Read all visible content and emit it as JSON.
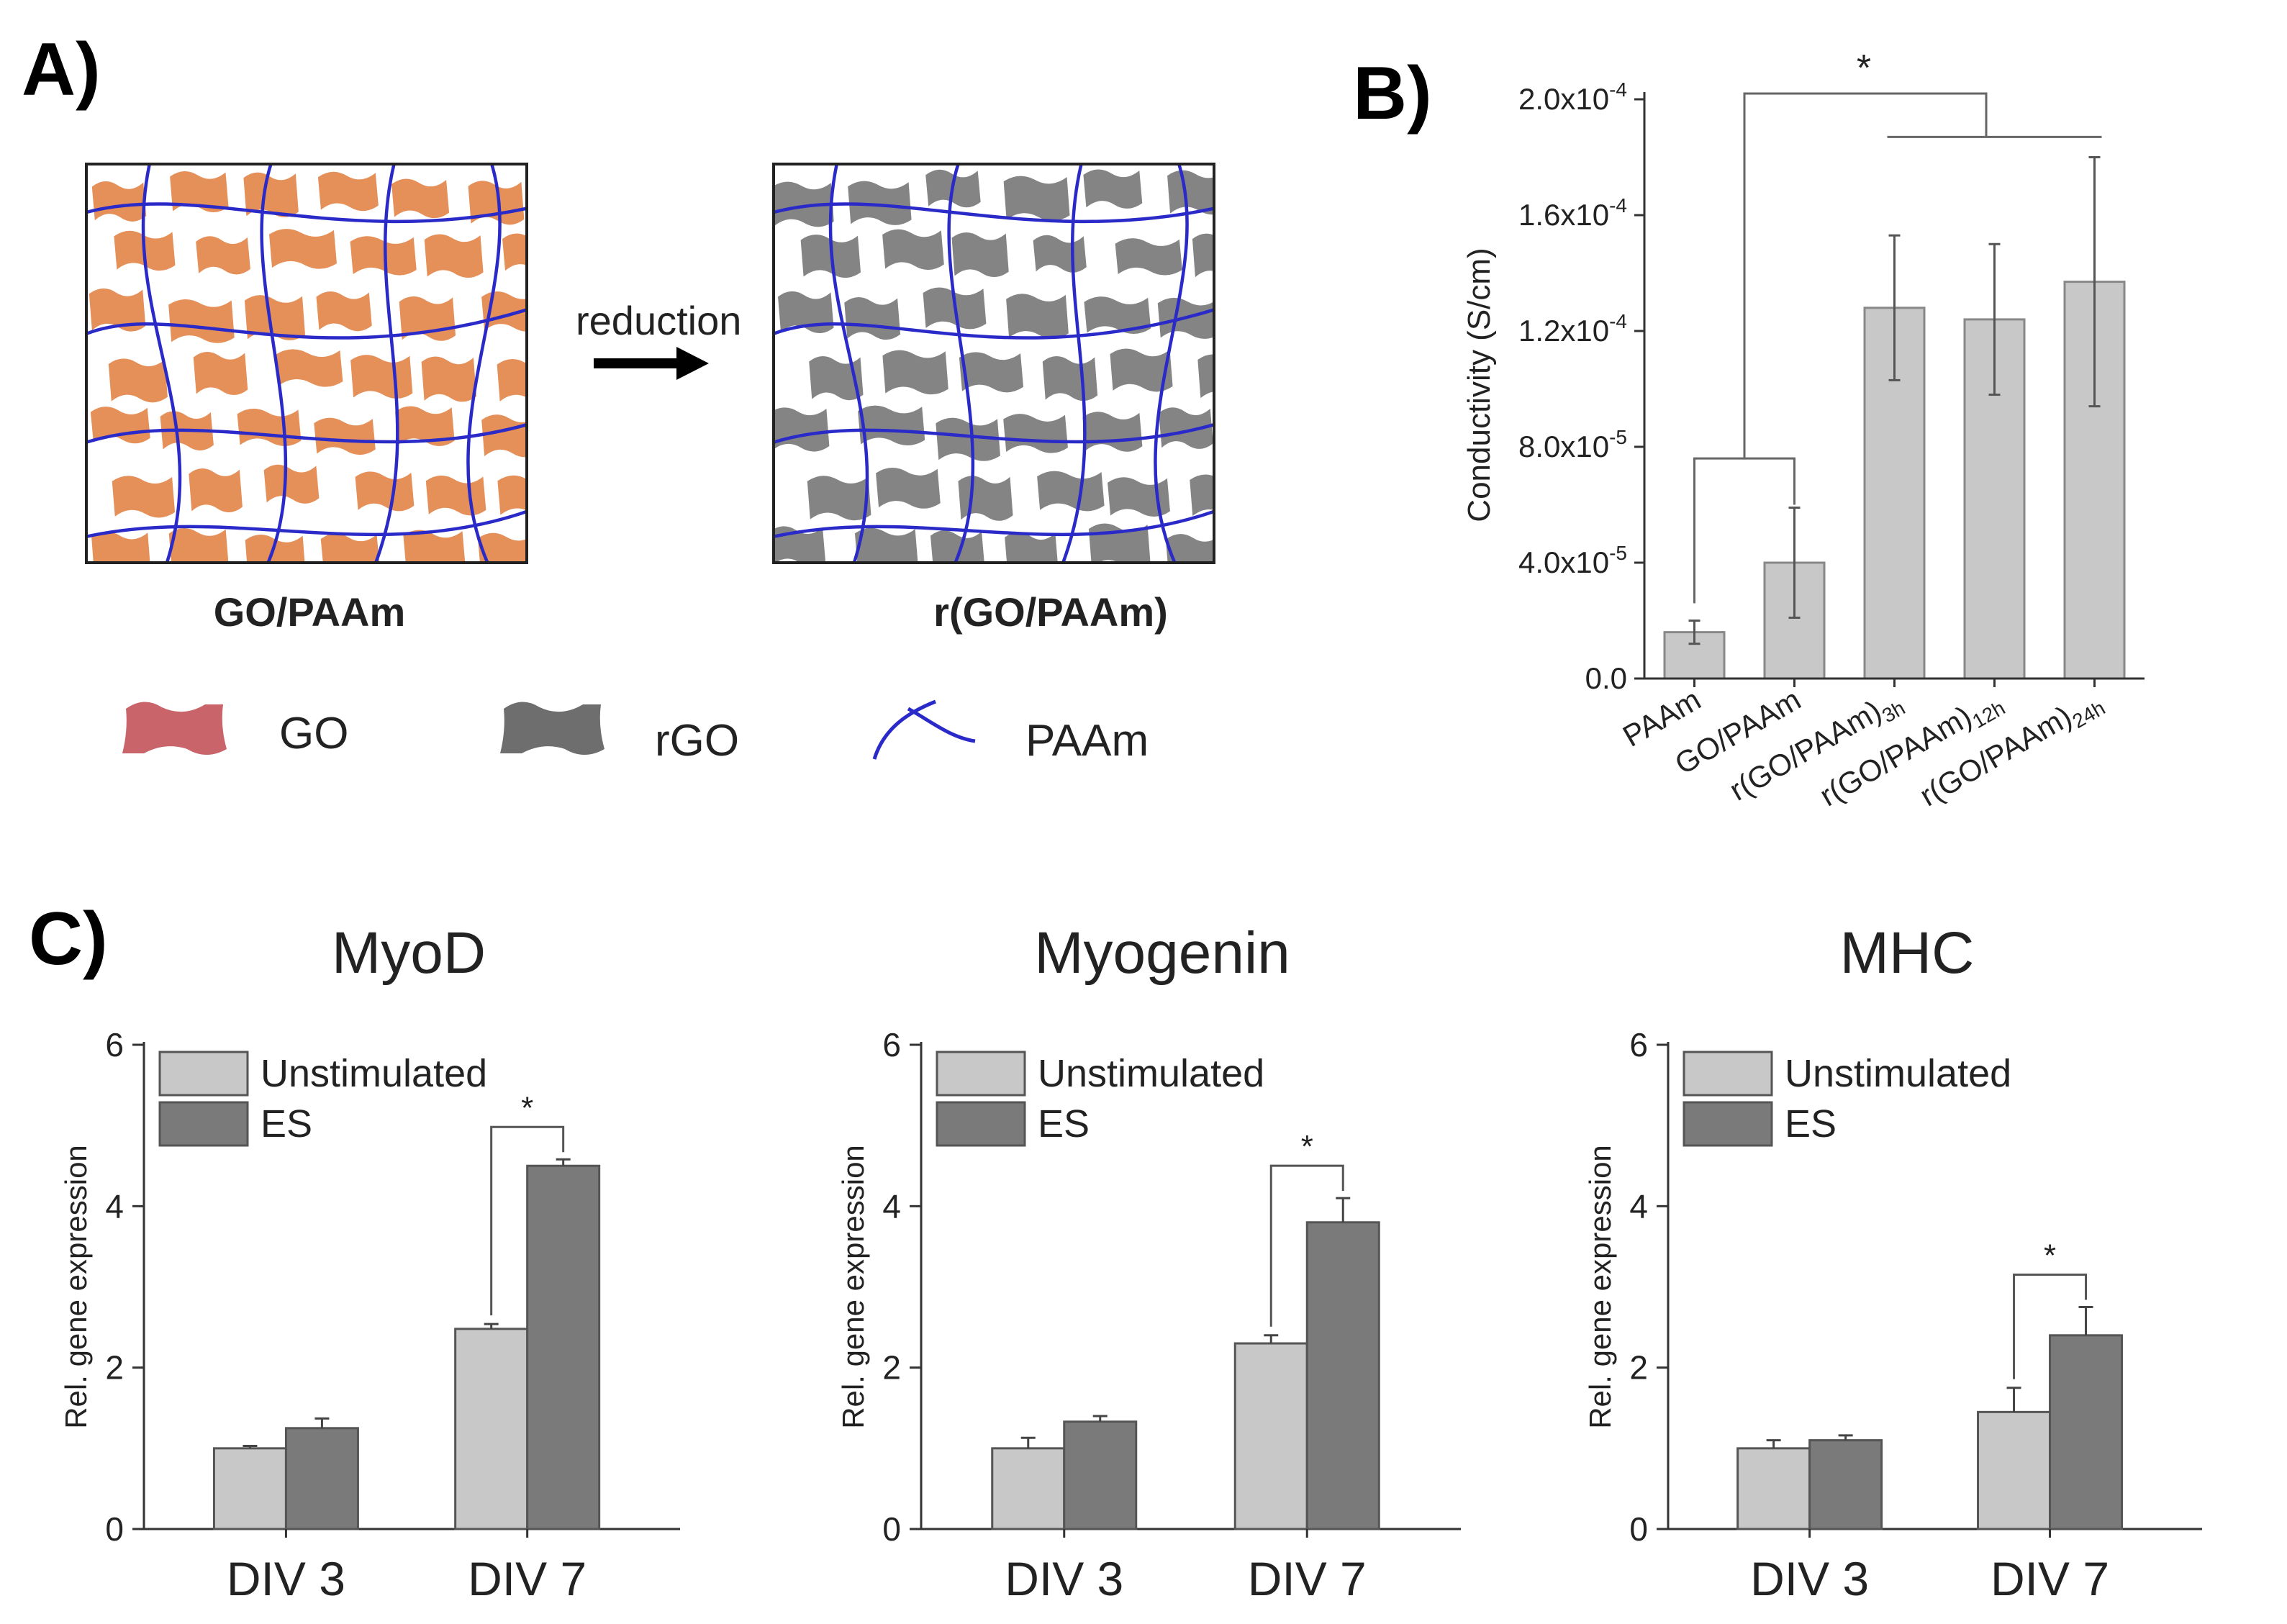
{
  "panels": {
    "a": "A)",
    "b": "B)",
    "c": "C)"
  },
  "schematic": {
    "arrow_label": "reduction",
    "left_caption": "GO/PAAm",
    "right_caption": "r(GO/PAAm)",
    "legend": [
      "GO",
      "rGO",
      "PAAm"
    ],
    "colors": {
      "go": "#e07b3c",
      "go_legend": "#c9646a",
      "rgo": "#6e6e6e",
      "paam": "#2a2ac8"
    }
  },
  "chart_data": [
    {
      "id": "B",
      "type": "bar",
      "title": "",
      "xlabel": "",
      "ylabel": "Conductivity (S/cm)",
      "ylim": [
        0,
        0.0002
      ],
      "yticks": [
        0,
        4e-05,
        8e-05,
        0.00012,
        0.00016,
        0.0002
      ],
      "ytick_labels": [
        {
          "base": "0.0",
          "exp": ""
        },
        {
          "base": "4.0x10",
          "exp": "-5"
        },
        {
          "base": "8.0x10",
          "exp": "-5"
        },
        {
          "base": "1.2x10",
          "exp": "-4"
        },
        {
          "base": "1.6x10",
          "exp": "-4"
        },
        {
          "base": "2.0x10",
          "exp": "-4"
        }
      ],
      "categories": [
        {
          "base": "PAAm",
          "sub": ""
        },
        {
          "base": "GO/PAAm",
          "sub": ""
        },
        {
          "base": "r(GO/PAAm)",
          "sub": "3h"
        },
        {
          "base": "r(GO/PAAm)",
          "sub": "12h"
        },
        {
          "base": "r(GO/PAAm)",
          "sub": "24h"
        }
      ],
      "values": [
        1.6e-05,
        4e-05,
        0.000128,
        0.000124,
        0.000137
      ],
      "errors": [
        4e-06,
        1.9e-05,
        2.5e-05,
        2.6e-05,
        4.3e-05
      ],
      "significance": "*",
      "bar_color": "#c8c8c8"
    },
    {
      "id": "C-MyoD",
      "type": "bar",
      "title": "MyoD",
      "ylabel": "Rel. gene expression",
      "ylim": [
        0,
        6
      ],
      "yticks": [
        0,
        2,
        4,
        6
      ],
      "categories": [
        "DIV 3",
        "DIV 7"
      ],
      "series": [
        {
          "name": "Unstimulated",
          "values": [
            1.0,
            2.48
          ],
          "errors": [
            0.03,
            0.06
          ],
          "color": "#c8c8c8"
        },
        {
          "name": "ES",
          "values": [
            1.25,
            4.5
          ],
          "errors": [
            0.12,
            0.08
          ],
          "color": "#7a7a7a"
        }
      ],
      "significance": "*"
    },
    {
      "id": "C-Myogenin",
      "type": "bar",
      "title": "Myogenin",
      "ylabel": "Rel. gene expression",
      "ylim": [
        0,
        6
      ],
      "yticks": [
        0,
        2,
        4,
        6
      ],
      "categories": [
        "DIV 3",
        "DIV 7"
      ],
      "series": [
        {
          "name": "Unstimulated",
          "values": [
            1.0,
            2.3
          ],
          "errors": [
            0.13,
            0.1
          ],
          "color": "#c8c8c8"
        },
        {
          "name": "ES",
          "values": [
            1.33,
            3.8
          ],
          "errors": [
            0.07,
            0.3
          ],
          "color": "#7a7a7a"
        }
      ],
      "significance": "*"
    },
    {
      "id": "C-MHC",
      "type": "bar",
      "title": "MHC",
      "ylabel": "Rel. gene expression",
      "ylim": [
        0,
        6
      ],
      "yticks": [
        0,
        2,
        4,
        6
      ],
      "categories": [
        "DIV 3",
        "DIV 7"
      ],
      "series": [
        {
          "name": "Unstimulated",
          "values": [
            1.0,
            1.45
          ],
          "errors": [
            0.1,
            0.3
          ],
          "color": "#c8c8c8"
        },
        {
          "name": "ES",
          "values": [
            1.1,
            2.4
          ],
          "errors": [
            0.06,
            0.35
          ],
          "color": "#7a7a7a"
        }
      ],
      "significance": "*"
    }
  ]
}
